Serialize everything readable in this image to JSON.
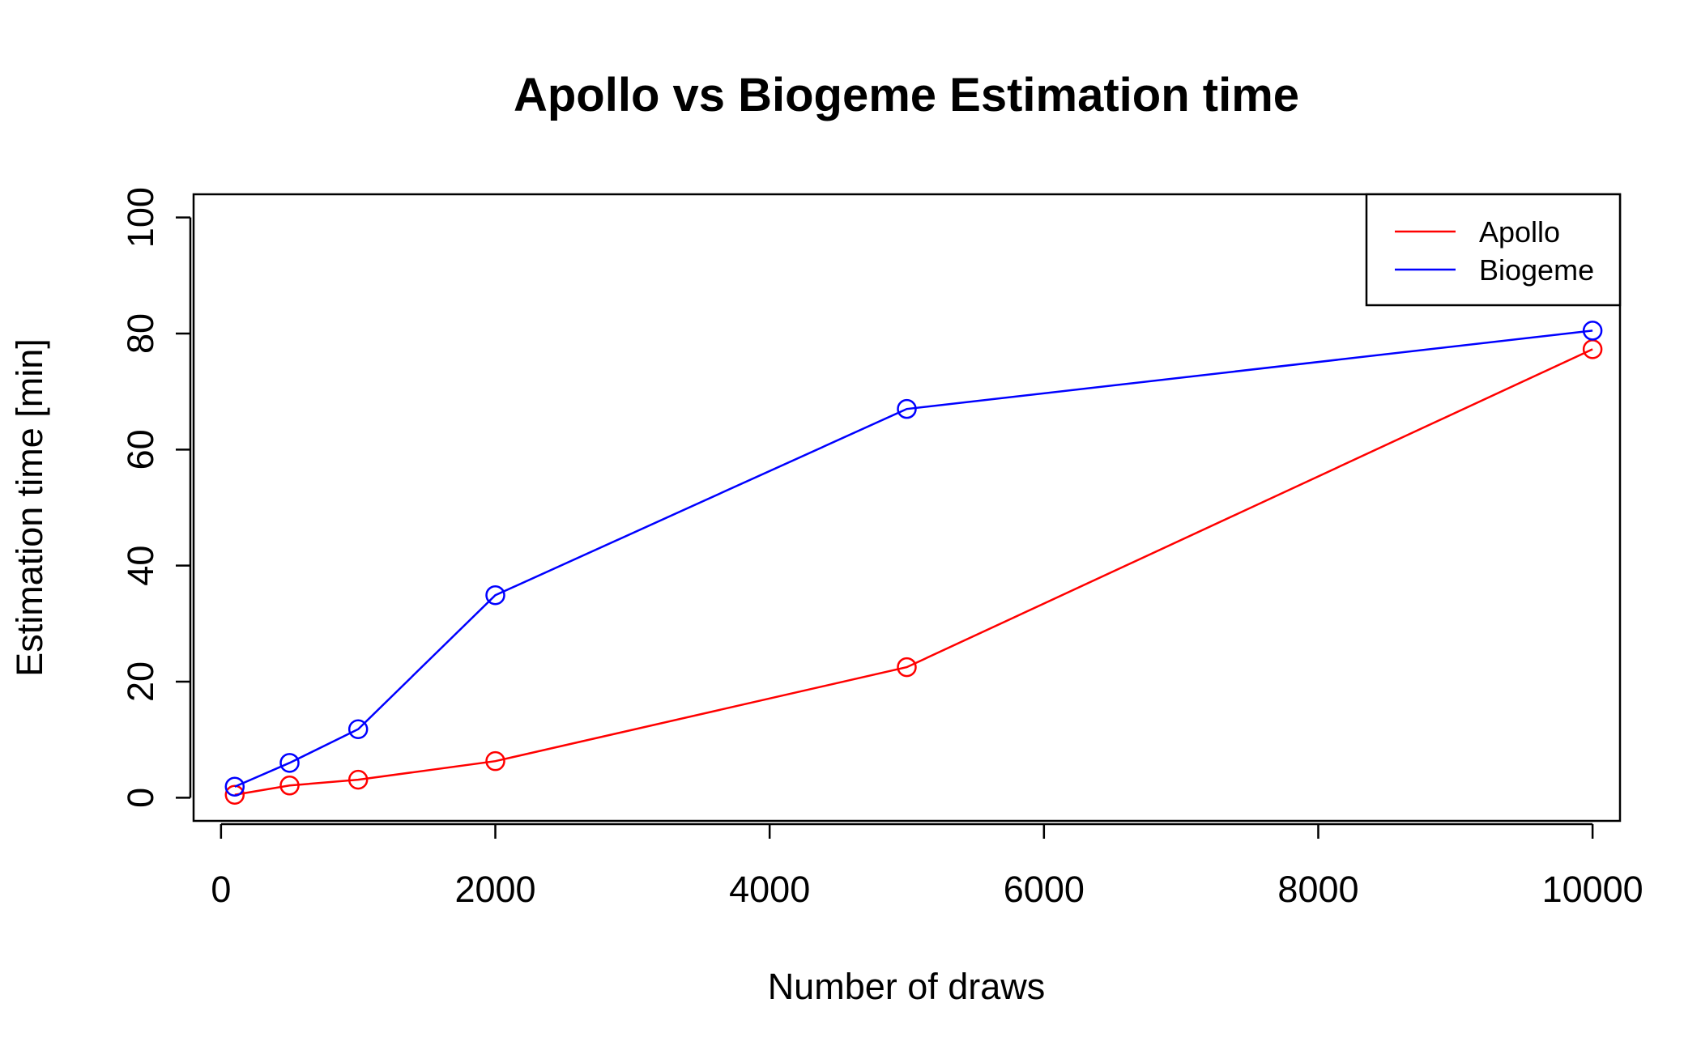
{
  "chart_data": {
    "type": "line",
    "title": "Apollo vs Biogeme Estimation time",
    "xlabel": "Number of draws",
    "ylabel": "Estimation time [min]",
    "xlim": [
      -200,
      10200
    ],
    "ylim": [
      -4,
      104
    ],
    "x_ticks": [
      0,
      2000,
      4000,
      6000,
      8000,
      10000
    ],
    "y_ticks": [
      0,
      20,
      40,
      60,
      80,
      100
    ],
    "grid": false,
    "legend_position": "top-right",
    "x": [
      100,
      500,
      1000,
      2000,
      5000,
      10000
    ],
    "series": [
      {
        "name": "Apollo",
        "color": "#ff0000",
        "values": [
          0.5,
          2.1,
          3.1,
          6.3,
          22.5,
          77.3
        ]
      },
      {
        "name": "Biogeme",
        "color": "#0000ff",
        "values": [
          1.9,
          6.0,
          11.8,
          34.9,
          67.0,
          80.5
        ]
      }
    ],
    "marker": "open-circle"
  }
}
